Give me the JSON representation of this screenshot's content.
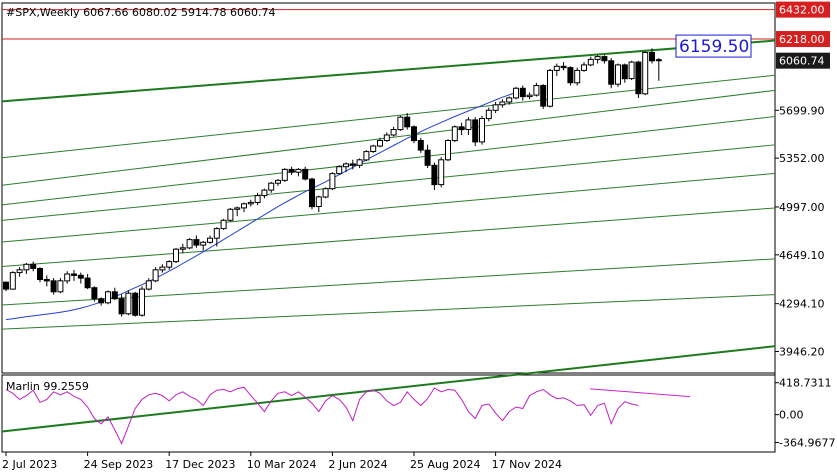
{
  "chart_data": {
    "type": "candlestick",
    "header": "#SPX,Weekly  6067.66 6080.02 5914.78 6060.74",
    "price_axis": {
      "ylim": [
        3790,
        6480
      ],
      "ticks": [
        "3946.20",
        "4294.10",
        "4649.10",
        "4997.00",
        "5352.00",
        "5699.90"
      ]
    },
    "price_tags": [
      {
        "text": "6432.00",
        "value": 6432.0,
        "kind": "red-box"
      },
      {
        "text": "6218.00",
        "value": 6218.0,
        "kind": "red-box"
      },
      {
        "text": "6060.74",
        "value": 6060.74,
        "kind": "dark-box"
      }
    ],
    "horizontal_lines": [
      {
        "value": 6432.0,
        "color": "#d62020"
      },
      {
        "value": 6218.0,
        "color": "#d62020"
      }
    ],
    "annotation": {
      "text": "6159.50",
      "value": 6159.5,
      "color": "#1a1ad8"
    },
    "time_axis": {
      "labels": [
        "2 Jul 2023",
        "24 Sep 2023",
        "17 Dec 2023",
        "10 Mar 2024",
        "2 Jun 2024",
        "25 Aug 2024",
        "17 Nov 2024"
      ]
    },
    "candles": [
      [
        4450,
        4455,
        4385,
        4400
      ],
      [
        4400,
        4530,
        4395,
        4520
      ],
      [
        4520,
        4560,
        4490,
        4540
      ],
      [
        4540,
        4590,
        4510,
        4580
      ],
      [
        4580,
        4600,
        4530,
        4550
      ],
      [
        4550,
        4560,
        4450,
        4470
      ],
      [
        4470,
        4500,
        4420,
        4460
      ],
      [
        4460,
        4480,
        4360,
        4380
      ],
      [
        4380,
        4480,
        4370,
        4460
      ],
      [
        4460,
        4530,
        4440,
        4510
      ],
      [
        4510,
        4540,
        4460,
        4500
      ],
      [
        4500,
        4520,
        4440,
        4480
      ],
      [
        4480,
        4510,
        4400,
        4410
      ],
      [
        4410,
        4420,
        4310,
        4330
      ],
      [
        4330,
        4340,
        4280,
        4300
      ],
      [
        4300,
        4390,
        4290,
        4380
      ],
      [
        4380,
        4410,
        4320,
        4330
      ],
      [
        4330,
        4360,
        4200,
        4220
      ],
      [
        4220,
        4390,
        4210,
        4370
      ],
      [
        4370,
        4380,
        4200,
        4210
      ],
      [
        4210,
        4420,
        4200,
        4400
      ],
      [
        4400,
        4480,
        4390,
        4460
      ],
      [
        4460,
        4560,
        4450,
        4540
      ],
      [
        4540,
        4580,
        4520,
        4560
      ],
      [
        4560,
        4610,
        4540,
        4600
      ],
      [
        4600,
        4700,
        4590,
        4690
      ],
      [
        4690,
        4730,
        4660,
        4700
      ],
      [
        4700,
        4770,
        4690,
        4760
      ],
      [
        4760,
        4790,
        4700,
        4720
      ],
      [
        4720,
        4750,
        4680,
        4740
      ],
      [
        4740,
        4790,
        4730,
        4770
      ],
      [
        4770,
        4850,
        4710,
        4840
      ],
      [
        4840,
        4910,
        4830,
        4900
      ],
      [
        4900,
        4990,
        4890,
        4980
      ],
      [
        4980,
        5000,
        4930,
        4990
      ],
      [
        4990,
        5030,
        4960,
        5020
      ],
      [
        5020,
        5050,
        5000,
        5030
      ],
      [
        5030,
        5100,
        5010,
        5080
      ],
      [
        5080,
        5130,
        5060,
        5120
      ],
      [
        5120,
        5180,
        5100,
        5170
      ],
      [
        5170,
        5200,
        5150,
        5190
      ],
      [
        5190,
        5280,
        5180,
        5270
      ],
      [
        5270,
        5290,
        5230,
        5250
      ],
      [
        5250,
        5280,
        5220,
        5270
      ],
      [
        5270,
        5290,
        5190,
        5200
      ],
      [
        5200,
        5210,
        4980,
        5000
      ],
      [
        5000,
        5080,
        4960,
        5070
      ],
      [
        5070,
        5140,
        5060,
        5130
      ],
      [
        5130,
        5250,
        5120,
        5240
      ],
      [
        5240,
        5300,
        5230,
        5290
      ],
      [
        5290,
        5320,
        5250,
        5310
      ],
      [
        5310,
        5340,
        5270,
        5300
      ],
      [
        5300,
        5350,
        5280,
        5340
      ],
      [
        5340,
        5410,
        5330,
        5400
      ],
      [
        5400,
        5450,
        5390,
        5440
      ],
      [
        5440,
        5500,
        5430,
        5480
      ],
      [
        5480,
        5540,
        5470,
        5520
      ],
      [
        5520,
        5580,
        5510,
        5560
      ],
      [
        5560,
        5660,
        5550,
        5650
      ],
      [
        5650,
        5680,
        5560,
        5580
      ],
      [
        5580,
        5590,
        5460,
        5480
      ],
      [
        5480,
        5500,
        5390,
        5410
      ],
      [
        5410,
        5450,
        5280,
        5300
      ],
      [
        5300,
        5320,
        5120,
        5160
      ],
      [
        5160,
        5360,
        5140,
        5340
      ],
      [
        5340,
        5490,
        5330,
        5480
      ],
      [
        5480,
        5590,
        5470,
        5580
      ],
      [
        5580,
        5610,
        5520,
        5560
      ],
      [
        5560,
        5650,
        5520,
        5630
      ],
      [
        5630,
        5650,
        5440,
        5470
      ],
      [
        5470,
        5660,
        5450,
        5640
      ],
      [
        5640,
        5720,
        5620,
        5700
      ],
      [
        5700,
        5760,
        5680,
        5740
      ],
      [
        5740,
        5780,
        5720,
        5760
      ],
      [
        5760,
        5800,
        5740,
        5790
      ],
      [
        5790,
        5870,
        5780,
        5860
      ],
      [
        5860,
        5880,
        5770,
        5800
      ],
      [
        5800,
        5830,
        5780,
        5810
      ],
      [
        5810,
        5900,
        5800,
        5880
      ],
      [
        5880,
        5890,
        5710,
        5730
      ],
      [
        5730,
        6000,
        5720,
        5990
      ],
      [
        5990,
        6040,
        5950,
        6020
      ],
      [
        6020,
        6050,
        5990,
        6010
      ],
      [
        6010,
        6020,
        5880,
        5900
      ],
      [
        5900,
        6010,
        5880,
        5990
      ],
      [
        5990,
        6050,
        5980,
        6030
      ],
      [
        6030,
        6090,
        6020,
        6070
      ],
      [
        6070,
        6100,
        6040,
        6090
      ],
      [
        6090,
        6100,
        6040,
        6060
      ],
      [
        6060,
        6080,
        5860,
        5890
      ],
      [
        5890,
        6040,
        5870,
        6030
      ],
      [
        6030,
        6040,
        5900,
        5930
      ],
      [
        5930,
        6060,
        5920,
        6050
      ],
      [
        6050,
        6060,
        5790,
        5820
      ],
      [
        5820,
        6130,
        5810,
        6120
      ],
      [
        6120,
        6150,
        6040,
        6060
      ],
      [
        6067.66,
        6080.02,
        5914.78,
        6060.74
      ]
    ],
    "channel_lines": [
      {
        "name": "main-upper",
        "value_start": 5765,
        "value_end": 6207,
        "color": "#1e7a1e",
        "width": 2
      },
      {
        "name": "main-lower",
        "value_start": 3365,
        "value_end": 3985,
        "color": "#1e7a1e",
        "width": 2
      },
      {
        "name": "fan-1",
        "value_start": 5355,
        "value_end": 5955,
        "color": "#2e7d2e",
        "width": 1
      },
      {
        "name": "fan-2",
        "value_start": 5155,
        "value_end": 5845,
        "color": "#2e7d2e",
        "width": 1
      },
      {
        "name": "fan-3",
        "value_start": 5012,
        "value_end": 5655,
        "color": "#2e7d2e",
        "width": 1
      },
      {
        "name": "fan-4",
        "value_start": 4900,
        "value_end": 5449,
        "color": "#2e7d2e",
        "width": 1
      },
      {
        "name": "fan-5",
        "value_start": 4742,
        "value_end": 5241,
        "color": "#2e7d2e",
        "width": 1
      },
      {
        "name": "fan-6",
        "value_start": 4564,
        "value_end": 4990,
        "color": "#2e7d2e",
        "width": 1
      },
      {
        "name": "fan-7",
        "value_start": 4284,
        "value_end": 4620,
        "color": "#2e7d2e",
        "width": 1
      },
      {
        "name": "fan-8",
        "value_start": 4109,
        "value_end": 4360,
        "color": "#2e7d2e",
        "width": 1
      }
    ],
    "moving_average": {
      "color": "#2040d0",
      "values": [
        4178,
        4185,
        4192,
        4200,
        4205,
        4212,
        4218,
        4225,
        4232,
        4240,
        4250,
        4262,
        4275,
        4290,
        4306,
        4325,
        4345,
        4366,
        4388,
        4410,
        4432,
        4456,
        4480,
        4505,
        4531,
        4558,
        4586,
        4614,
        4642,
        4671,
        4700,
        4730,
        4760,
        4790,
        4820,
        4850,
        4880,
        4910,
        4940,
        4970,
        5000,
        5028,
        5055,
        5082,
        5108,
        5132,
        5155,
        5180,
        5206,
        5232,
        5258,
        5285,
        5312,
        5340,
        5366,
        5392,
        5418,
        5444,
        5470,
        5496,
        5520,
        5544,
        5568,
        5590,
        5612,
        5634,
        5655,
        5675,
        5695,
        5715,
        5735,
        5755,
        5775,
        5795,
        5812,
        5830
      ]
    },
    "indicator": {
      "label": "Marlin 99.2559",
      "ylim": [
        -490,
        520
      ],
      "ticks": [
        "418.7311",
        "0.00",
        "-364.9677"
      ],
      "color": "#c020c0",
      "values": [
        330,
        280,
        200,
        250,
        320,
        160,
        200,
        300,
        260,
        300,
        240,
        200,
        100,
        -50,
        -120,
        -30,
        -200,
        -380,
        -150,
        80,
        200,
        260,
        280,
        250,
        180,
        260,
        300,
        240,
        200,
        120,
        260,
        320,
        330,
        300,
        340,
        360,
        250,
        150,
        40,
        180,
        280,
        300,
        250,
        300,
        230,
        150,
        40,
        180,
        250,
        200,
        100,
        -80,
        200,
        300,
        320,
        280,
        180,
        120,
        160,
        300,
        200,
        120,
        210,
        350,
        300,
        330,
        320,
        200,
        40,
        -50,
        120,
        140,
        20,
        -80,
        40,
        100,
        80,
        250,
        300,
        330,
        260,
        210,
        220,
        180,
        120,
        130,
        -10,
        120,
        150,
        -120,
        80,
        170,
        140,
        120
      ],
      "divergence_line": {
        "value_start": 338,
        "value_end": 237,
        "color": "#d020d0"
      }
    },
    "grid": false,
    "legend": "none"
  }
}
